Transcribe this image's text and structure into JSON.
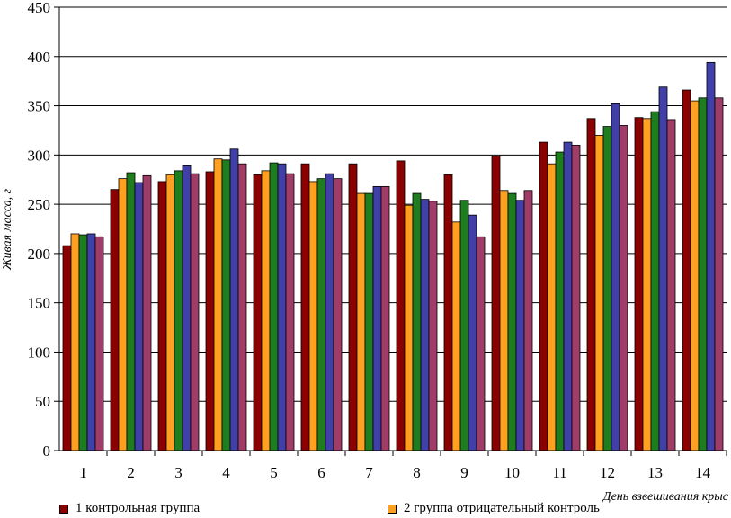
{
  "chart_data": {
    "type": "bar",
    "ylabel": "Живая масса, г",
    "xlabel": "День взвешивания крыс",
    "ylim": [
      0,
      450
    ],
    "yticks": [
      0,
      50,
      100,
      150,
      200,
      250,
      300,
      350,
      400,
      450
    ],
    "grid": "horizontal",
    "legend_position": "bottom",
    "categories": [
      "1",
      "2",
      "3",
      "4",
      "5",
      "6",
      "7",
      "8",
      "9",
      "10",
      "11",
      "12",
      "13",
      "14"
    ],
    "series": [
      {
        "name": "1 контрольная группа",
        "color": "#8b0000",
        "values": [
          208,
          265,
          273,
          283,
          280,
          291,
          291,
          294,
          280,
          299,
          313,
          337,
          338,
          366
        ]
      },
      {
        "name": "2 группа отрицательный контроль",
        "color": "#ffa020",
        "values": [
          220,
          276,
          280,
          296,
          284,
          273,
          261,
          249,
          232,
          264,
          291,
          320,
          337,
          355
        ]
      },
      {
        "name": "",
        "color": "#1e7d1e",
        "values": [
          219,
          282,
          284,
          295,
          292,
          276,
          261,
          261,
          254,
          261,
          303,
          329,
          344,
          358
        ]
      },
      {
        "name": "",
        "color": "#4040a8",
        "values": [
          220,
          272,
          289,
          306,
          291,
          281,
          268,
          255,
          239,
          254,
          313,
          352,
          369,
          394
        ]
      },
      {
        "name": "",
        "color": "#a03c68",
        "values": [
          217,
          279,
          281,
          291,
          281,
          276,
          268,
          253,
          217,
          264,
          310,
          330,
          336,
          358
        ]
      }
    ]
  }
}
